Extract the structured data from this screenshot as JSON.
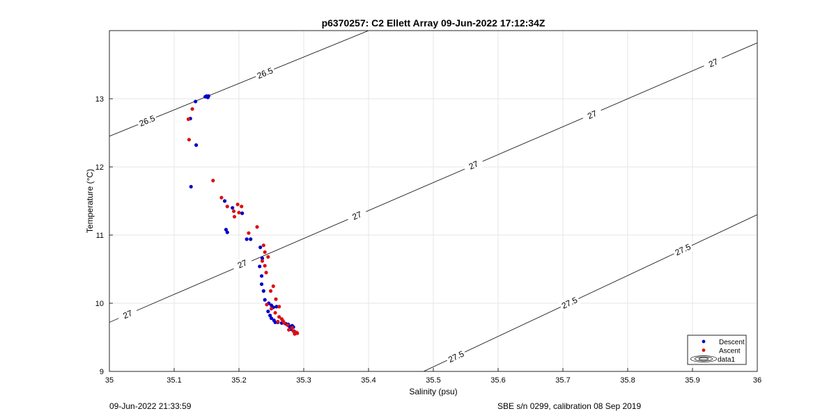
{
  "footer": {
    "timestamp": "09-Jun-2022 21:33:59",
    "instrument": "SBE s/n 0299, calibration 08 Sep 2019"
  },
  "chart_data": {
    "type": "scatter",
    "title": "p6370257: C2 Ellett Array 09-Jun-2022 17:12:34Z",
    "xlabel": "Salinity (psu)",
    "ylabel": "Temperature (°C)",
    "xlim": [
      35,
      36
    ],
    "ylim": [
      9,
      14
    ],
    "grid": true,
    "x_ticks": [
      35,
      35.1,
      35.2,
      35.3,
      35.4,
      35.5,
      35.6,
      35.7,
      35.8,
      35.9,
      36
    ],
    "x_tick_labels": [
      "35",
      "35.1",
      "35.2",
      "35.3",
      "35.4",
      "35.5",
      "35.6",
      "35.7",
      "35.8",
      "35.9",
      "36"
    ],
    "y_ticks": [
      9,
      10,
      11,
      12,
      13
    ],
    "y_tick_labels": [
      "9",
      "10",
      "11",
      "12",
      "13"
    ],
    "legend": {
      "position": "bottom-right",
      "entries": [
        {
          "label": "Descent",
          "color": "#0000cc",
          "marker": "dot"
        },
        {
          "label": "Ascent",
          "color": "#dd1111",
          "marker": "dot"
        },
        {
          "label": "data1",
          "color": "#000000",
          "marker": "contour"
        }
      ]
    },
    "contours": [
      {
        "label": "26.5",
        "points": [
          [
            35,
            12.45
          ],
          [
            35.4,
            14
          ]
        ],
        "label_positions": [
          [
            35.058,
            12.68
          ],
          [
            35.24,
            13.38
          ]
        ]
      },
      {
        "label": "27",
        "points": [
          [
            35,
            9.72
          ],
          [
            36,
            13.82
          ]
        ],
        "label_positions": [
          [
            35.028,
            9.84
          ],
          [
            35.205,
            10.58
          ],
          [
            35.382,
            11.29
          ],
          [
            35.562,
            12.03
          ],
          [
            35.745,
            12.77
          ],
          [
            35.932,
            13.53
          ]
        ]
      },
      {
        "label": "27.5",
        "points": [
          [
            35.485,
            9
          ],
          [
            36,
            11.3
          ]
        ],
        "label_positions": [
          [
            35.535,
            9.22
          ],
          [
            35.71,
            10.01
          ],
          [
            35.885,
            10.79
          ]
        ]
      }
    ],
    "series": [
      {
        "name": "Descent",
        "color": "#0000cc",
        "points": [
          [
            35.15,
            13.04
          ],
          [
            35.153,
            13.04
          ],
          [
            35.148,
            13.03
          ],
          [
            35.152,
            13.02
          ],
          [
            35.133,
            12.96
          ],
          [
            35.125,
            12.71
          ],
          [
            35.134,
            12.32
          ],
          [
            35.126,
            11.71
          ],
          [
            35.178,
            11.5
          ],
          [
            35.19,
            11.4
          ],
          [
            35.205,
            11.32
          ],
          [
            35.18,
            11.08
          ],
          [
            35.182,
            11.04
          ],
          [
            35.212,
            10.94
          ],
          [
            35.218,
            10.94
          ],
          [
            35.233,
            10.82
          ],
          [
            35.236,
            10.66
          ],
          [
            35.232,
            10.54
          ],
          [
            35.235,
            10.4
          ],
          [
            35.235,
            10.28
          ],
          [
            35.238,
            10.18
          ],
          [
            35.24,
            10.05
          ],
          [
            35.246,
            10.0
          ],
          [
            35.25,
            9.97
          ],
          [
            35.253,
            9.94
          ],
          [
            35.258,
            9.95
          ],
          [
            35.245,
            9.88
          ],
          [
            35.248,
            9.82
          ],
          [
            35.25,
            9.78
          ],
          [
            35.254,
            9.75
          ],
          [
            35.256,
            9.72
          ],
          [
            35.26,
            9.72
          ],
          [
            35.266,
            9.71
          ],
          [
            35.272,
            9.7
          ],
          [
            35.276,
            9.69
          ],
          [
            35.278,
            9.66
          ],
          [
            35.282,
            9.67
          ],
          [
            35.284,
            9.65
          ],
          [
            35.28,
            9.62
          ],
          [
            35.285,
            9.59
          ],
          [
            35.287,
            9.57
          ]
        ]
      },
      {
        "name": "Ascent",
        "color": "#dd1111",
        "points": [
          [
            35.128,
            12.85
          ],
          [
            35.122,
            12.7
          ],
          [
            35.123,
            12.4
          ],
          [
            35.16,
            11.8
          ],
          [
            35.173,
            11.55
          ],
          [
            35.182,
            11.42
          ],
          [
            35.198,
            11.45
          ],
          [
            35.204,
            11.42
          ],
          [
            35.192,
            11.35
          ],
          [
            35.2,
            11.33
          ],
          [
            35.193,
            11.27
          ],
          [
            35.228,
            11.12
          ],
          [
            35.215,
            11.03
          ],
          [
            35.238,
            10.85
          ],
          [
            35.24,
            10.75
          ],
          [
            35.245,
            10.68
          ],
          [
            35.24,
            10.55
          ],
          [
            35.242,
            10.45
          ],
          [
            35.236,
            10.62
          ],
          [
            35.253,
            10.25
          ],
          [
            35.249,
            10.18
          ],
          [
            35.257,
            10.06
          ],
          [
            35.243,
            9.98
          ],
          [
            35.25,
            9.92
          ],
          [
            35.256,
            9.86
          ],
          [
            35.262,
            9.8
          ],
          [
            35.26,
            9.73
          ],
          [
            35.268,
            9.74
          ],
          [
            35.27,
            9.71
          ],
          [
            35.275,
            9.68
          ],
          [
            35.282,
            9.64
          ],
          [
            35.277,
            9.61
          ],
          [
            35.284,
            9.59
          ],
          [
            35.289,
            9.57
          ],
          [
            35.286,
            9.55
          ],
          [
            35.29,
            9.56
          ],
          [
            35.266,
            9.77
          ],
          [
            35.262,
            9.95
          ]
        ]
      }
    ]
  }
}
